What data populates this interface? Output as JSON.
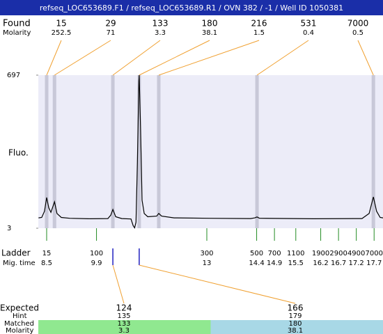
{
  "chart_data": {
    "type": "electropherogram",
    "title": "refseq_LOC653689.F1 / refseq_LOC653689.R1 / OVN 382 / -1 / Well ID 1050381",
    "found_label": "Found",
    "molarity_label": "Molarity",
    "y_label": "Fluo.",
    "ladder_label": "Ladder",
    "time_label": "Mig. time",
    "xlim": [
      8.265,
      17.95
    ],
    "ylim": [
      3,
      697
    ],
    "yticks": [
      3,
      697
    ],
    "trace": {
      "color": "#000000",
      "x": [
        8.27,
        8.36,
        8.44,
        8.5,
        8.56,
        8.62,
        8.72,
        8.79,
        8.91,
        9.15,
        9.73,
        10.22,
        10.3,
        10.36,
        10.44,
        10.61,
        10.87,
        10.93,
        10.97,
        11.01,
        11.05,
        11.09,
        11.1,
        11.14,
        11.18,
        11.24,
        11.34,
        11.59,
        11.65,
        11.73,
        12.08,
        13.06,
        14.23,
        14.35,
        14.41,
        14.48,
        15.99,
        17.36,
        17.56,
        17.68,
        17.77,
        17.87,
        17.95
      ],
      "values": [
        50,
        52,
        80,
        142,
        95,
        75,
        123,
        70,
        52,
        48,
        46,
        47,
        62,
        88,
        55,
        47,
        45,
        15,
        5,
        30,
        300,
        670,
        697,
        450,
        130,
        70,
        55,
        58,
        70,
        58,
        50,
        48,
        47,
        50,
        54,
        48,
        46,
        47,
        70,
        145,
        80,
        52,
        50
      ]
    },
    "peaks": {
      "band_color": "#c8c8d8",
      "link_color": "#f0a030",
      "sizes": [
        15,
        29,
        133,
        180,
        216,
        531,
        7000
      ],
      "molarity": [
        252.5,
        71,
        3.3,
        38.1,
        1.5,
        0.4,
        0.5
      ],
      "times": [
        8.5,
        8.72,
        10.36,
        11.1,
        11.65,
        14.41,
        17.68
      ]
    },
    "ladder": {
      "color": "#228b22",
      "sizes": [
        15,
        100,
        300,
        500,
        700,
        1100,
        1900,
        2900,
        4900,
        7000
      ],
      "times": [
        8.5,
        9.9,
        13,
        14.4,
        14.9,
        15.5,
        16.2,
        16.7,
        17.2,
        17.7
      ]
    },
    "expected": {
      "labels": [
        "Expected",
        "Hint",
        "Matched",
        "Molarity"
      ],
      "expected": [
        124,
        166
      ],
      "hint": [
        135,
        179
      ],
      "matched": [
        133,
        180
      ],
      "molarity": [
        3.3,
        38.1
      ],
      "colors": [
        "#90e890",
        "#a8d8e6"
      ]
    }
  }
}
